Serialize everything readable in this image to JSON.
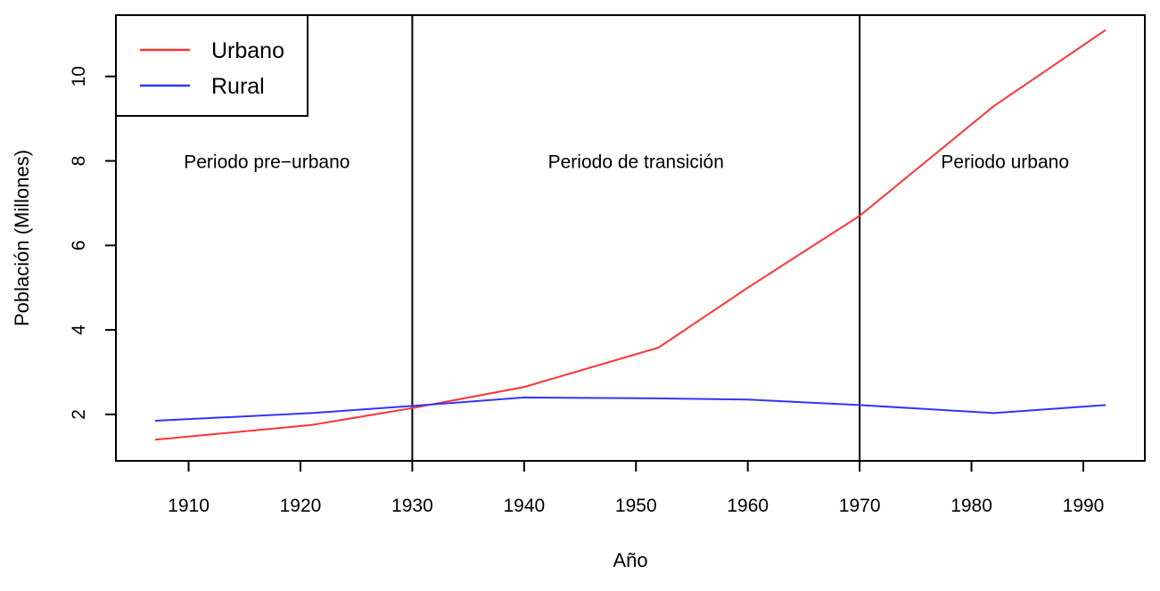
{
  "chart_data": {
    "type": "line",
    "title": "",
    "xlabel": "Año",
    "ylabel": "Población (Millones)",
    "xlim": [
      1903.5,
      1995.5
    ],
    "ylim": [
      0.9,
      11.45
    ],
    "x_ticks": [
      1910,
      1920,
      1930,
      1940,
      1950,
      1960,
      1970,
      1980,
      1990
    ],
    "y_ticks": [
      2,
      4,
      6,
      8,
      10
    ],
    "grid": false,
    "legend_position": "top-left",
    "series": [
      {
        "name": "Urbano",
        "color": "#ff3333",
        "x": [
          1907,
          1921,
          1930,
          1940,
          1952,
          1960,
          1970,
          1982,
          1992
        ],
        "y": [
          1.4,
          1.75,
          2.15,
          2.65,
          3.58,
          5.0,
          6.7,
          9.3,
          11.1
        ]
      },
      {
        "name": "Rural",
        "color": "#3333ff",
        "x": [
          1907,
          1921,
          1930,
          1940,
          1952,
          1960,
          1970,
          1982,
          1992
        ],
        "y": [
          1.85,
          2.03,
          2.2,
          2.4,
          2.38,
          2.35,
          2.22,
          2.03,
          2.22
        ]
      }
    ],
    "vlines": [
      1930,
      1970
    ],
    "annotations": [
      {
        "text": "Periodo pre−urbano",
        "x": 1917,
        "y": 8.0
      },
      {
        "text": "Periodo de transición",
        "x": 1950,
        "y": 8.0
      },
      {
        "text": "Periodo urbano",
        "x": 1983,
        "y": 8.0
      }
    ]
  }
}
